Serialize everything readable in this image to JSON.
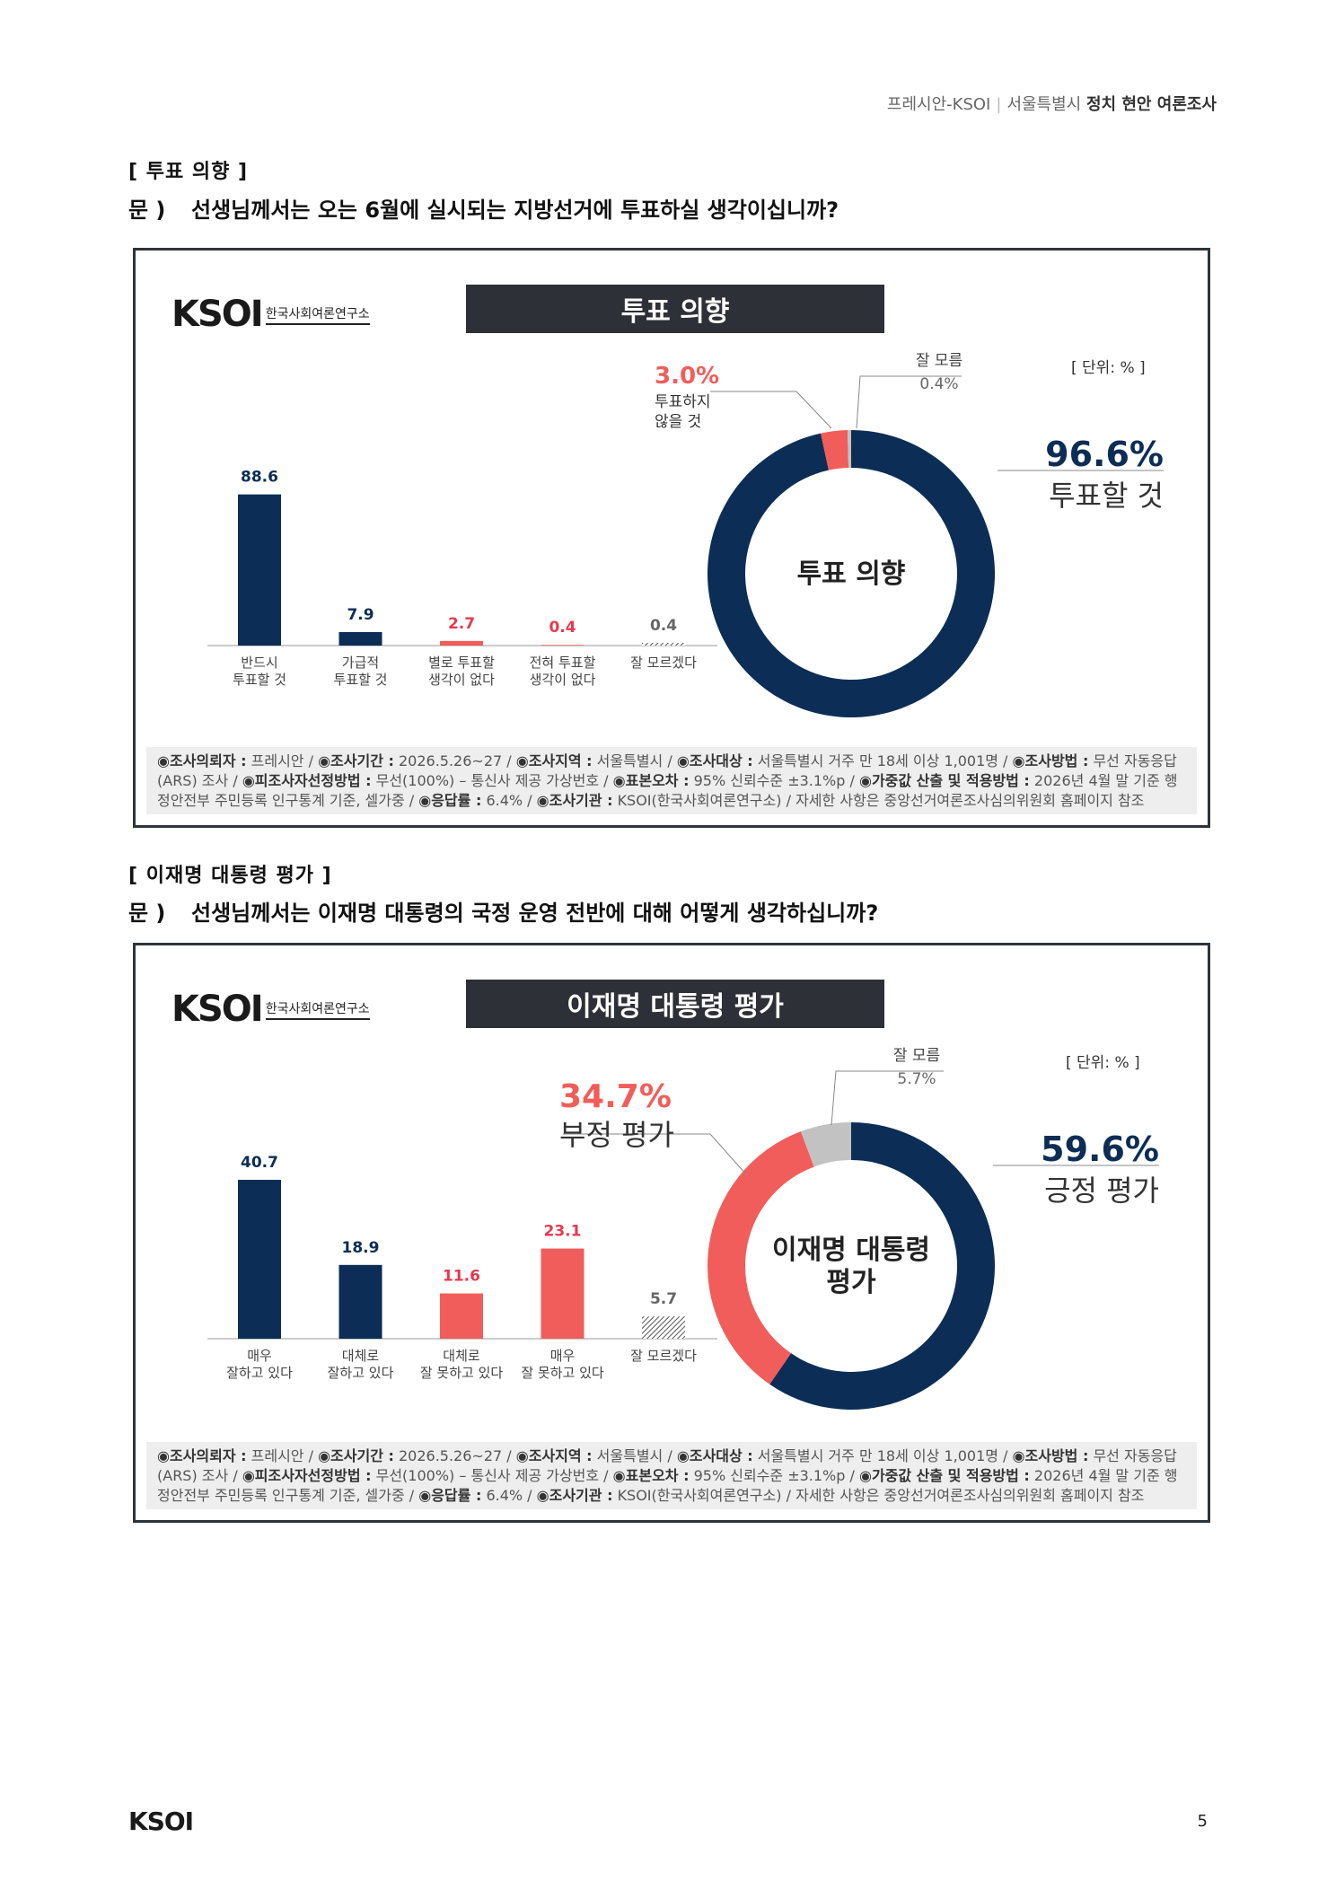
{
  "header": {
    "source": "프레시안-KSOI",
    "sep": "|",
    "region": "서울특별시",
    "title": "정치 현안 여론조사"
  },
  "colors": {
    "navy": "#0c2d55",
    "red": "#f15d5a",
    "gray": "#c2c2c2",
    "dark_title": "#2d3036"
  },
  "logo": {
    "mark": "KSOI",
    "sub": "한국사회여론연구소"
  },
  "sections": [
    {
      "section_title": "[ 투표 의향 ]",
      "q_mark": "문 )",
      "question": "선생님께서는 오는 6월에 실시되는 지방선거에 투표하실 생각이십니까?",
      "panel_title": "투표 의향",
      "unit": "[ 단위: % ]",
      "donut_center": [
        "투표 의향"
      ]
    },
    {
      "section_title": "[ 이재명 대통령 평가 ]",
      "q_mark": "문 )",
      "question": "선생님께서는 이재명 대통령의 국정 운영 전반에 대해 어떻게 생각하십니까?",
      "panel_title": "이재명 대통령 평가",
      "unit": "[ 단위: % ]",
      "donut_center": [
        "이재명 대통령",
        "평가"
      ]
    }
  ],
  "chart_data": [
    {
      "type": "bar",
      "categories": [
        [
          "반드시",
          "투표할 것"
        ],
        [
          "가급적",
          "투표할 것"
        ],
        [
          "별로 투표할",
          "생각이 없다"
        ],
        [
          "전혀 투표할",
          "생각이 없다"
        ],
        [
          "잘 모르겠다"
        ]
      ],
      "values": [
        88.6,
        7.9,
        2.7,
        0.4,
        0.4
      ],
      "value_labels": [
        "88.6",
        "7.9",
        "2.7",
        "0.4",
        "0.4"
      ],
      "colors": [
        "navy",
        "navy",
        "red",
        "red",
        "gray"
      ],
      "ylim": [
        0,
        100
      ]
    },
    {
      "type": "pie",
      "slices": [
        {
          "pct": "96.6%",
          "value": 96.6,
          "label": [
            "투표할 것"
          ],
          "color": "navy"
        },
        {
          "pct": "3.0%",
          "value": 3.0,
          "label": [
            "투표하지",
            "않을 것"
          ],
          "color": "red"
        },
        {
          "label": [
            "잘 모름"
          ],
          "pct": "0.4%",
          "value": 0.4,
          "color": "gray"
        }
      ]
    },
    {
      "type": "bar",
      "categories": [
        [
          "매우",
          "잘하고 있다"
        ],
        [
          "대체로",
          "잘하고 있다"
        ],
        [
          "대체로",
          "잘 못하고 있다"
        ],
        [
          "매우",
          "잘 못하고 있다"
        ],
        [
          "잘 모르겠다"
        ]
      ],
      "values": [
        40.7,
        18.9,
        11.6,
        23.1,
        5.7
      ],
      "value_labels": [
        "40.7",
        "18.9",
        "11.6",
        "23.1",
        "5.7"
      ],
      "colors": [
        "navy",
        "navy",
        "red",
        "red",
        "gray"
      ],
      "ylim": [
        0,
        46
      ]
    },
    {
      "type": "pie",
      "slices": [
        {
          "pct": "59.6%",
          "value": 59.6,
          "label": [
            "긍정 평가"
          ],
          "color": "navy"
        },
        {
          "pct": "34.7%",
          "value": 34.7,
          "label": [
            "부정 평가"
          ],
          "color": "red"
        },
        {
          "label": [
            "잘 모름"
          ],
          "pct": "5.7%",
          "value": 5.7,
          "color": "gray"
        }
      ]
    }
  ],
  "footer": {
    "k1": "◉조사의뢰자 :",
    "v1": "프레시안 /",
    "k2": "◉조사기간 :",
    "v2": "2026.5.26~27 /",
    "k3": "◉조사지역 :",
    "v3": "서울특별시 /",
    "k4": "◉조사대상 :",
    "v4": "서울특별시 거주 만 18세 이상 1,001명 /",
    "k5": "◉조사방법 :",
    "v5": "무선 자동응답(ARS) 조사 /",
    "k6": "◉피조사자선정방법 :",
    "v6": "무선(100%) – 통신사 제공 가상번호 /",
    "k7": "◉표본오차 :",
    "v7": "95% 신뢰수준 ±3.1%p /",
    "k8": "◉가중값 산출 및 적용방법 :",
    "v8": "2026년 4월 말 기준 행정안전부 주민등록 인구통계 기준, 셀가중 /",
    "k9": "◉응답률 :",
    "v9": "6.4% /",
    "k10": "◉조사기관 :",
    "v10": "KSOI(한국사회여론연구소) /",
    "v11": "자세한 사항은 중앙선거여론조사심의위원회 홈페이지 참조"
  },
  "page": {
    "footer_logo": "KSOI",
    "number": "5"
  }
}
